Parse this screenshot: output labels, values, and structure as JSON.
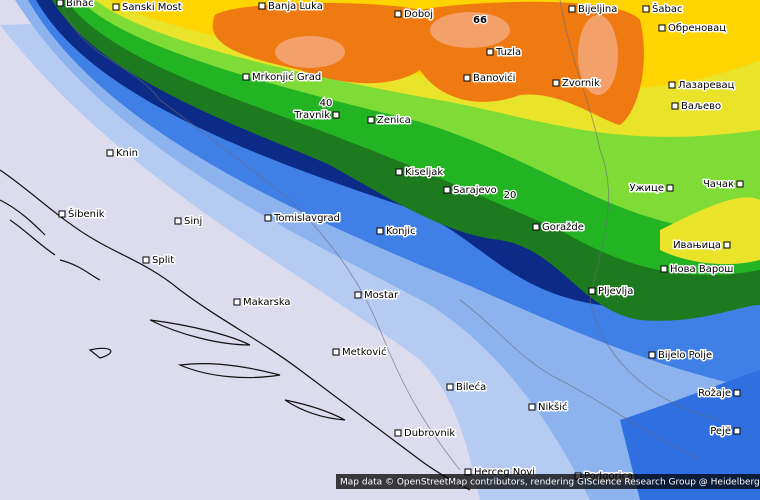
{
  "cities": [
    "Bihać",
    "Sanski Most",
    "Banja Luka",
    "Doboj",
    "Bijeljina",
    "Šabac",
    "Обреновац",
    "Tuzla",
    "Mrkonjić Grad",
    "Banovići",
    "Zvornik",
    "Лазаревац",
    "Ваљево",
    "Travnik",
    "Zenica",
    "Knin",
    "Kiseljak",
    "Sarajevo",
    "Ужице",
    "Чачак",
    "Šibenik",
    "Sinj",
    "Tomislavgrad",
    "Konjic",
    "Goražde",
    "Ивањица",
    "Split",
    "Нова Варош",
    "Pljevlja",
    "Makarska",
    "Mostar",
    "Metković",
    "Bijelo Polje",
    "Bileća",
    "Rožaje",
    "Nikšić",
    "Dubrovnik",
    "Pejë",
    "Herceg Novi",
    "Podgorica"
  ],
  "contour_labels": [
    "66",
    "40",
    "20"
  ],
  "attribution": "Map data © OpenStreetMap contributors, rendering GIScience Research Group @ Heidelberg University"
}
